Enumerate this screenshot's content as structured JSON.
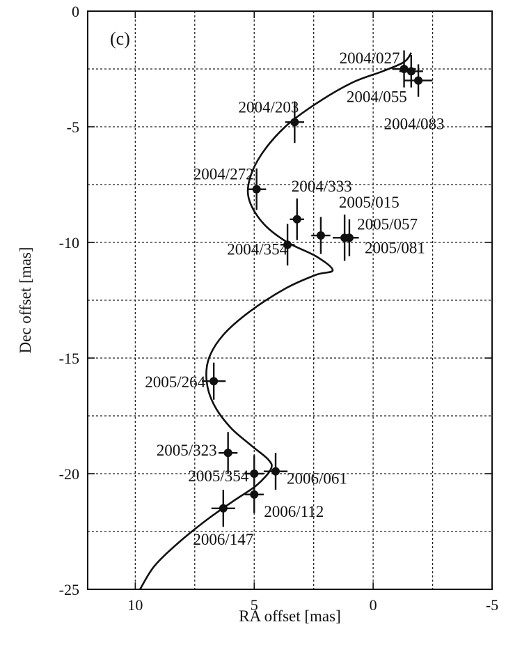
{
  "chart_data": {
    "type": "scatter",
    "panel_label": "(c)",
    "xlabel": "RA offset [mas]",
    "ylabel": "Dec offset [mas]",
    "xlim": [
      12,
      -5
    ],
    "ylim": [
      -25,
      0
    ],
    "x_major_ticks": [
      10,
      5,
      0,
      -5
    ],
    "y_major_ticks": [
      0,
      -5,
      -10,
      -15,
      -20,
      -25
    ],
    "x_grid": [
      10,
      7.5,
      5,
      2.5,
      0,
      -2.5
    ],
    "y_grid": [
      -2.5,
      -5,
      -7.5,
      -10,
      -12.5,
      -15,
      -17.5,
      -20,
      -22.5
    ],
    "grid": true,
    "points": [
      {
        "label": "2004/027",
        "x": -1.3,
        "y": -2.5,
        "xerr": 0.5,
        "yerr": 0.8
      },
      {
        "label": "2004/055",
        "x": -1.6,
        "y": -2.6,
        "xerr": 0.5,
        "yerr": 0.7
      },
      {
        "label": "2004/083",
        "x": -1.9,
        "y": -3.0,
        "xerr": 0.6,
        "yerr": 0.7
      },
      {
        "label": "2004/203",
        "x": 3.3,
        "y": -4.8,
        "xerr": 0.4,
        "yerr": 0.9
      },
      {
        "label": "2004/272",
        "x": 4.9,
        "y": -7.7,
        "xerr": 0.4,
        "yerr": 0.9
      },
      {
        "label": "2004/333",
        "x": 3.2,
        "y": -9.0,
        "xerr": 0.3,
        "yerr": 0.9
      },
      {
        "label": "2004/354",
        "x": 3.6,
        "y": -10.1,
        "xerr": 0.3,
        "yerr": 0.9
      },
      {
        "label": "2005/015",
        "x": 2.2,
        "y": -9.7,
        "xerr": 0.4,
        "yerr": 0.8
      },
      {
        "label": "2005/057",
        "x": 1.2,
        "y": -9.8,
        "xerr": 0.5,
        "yerr": 1.0
      },
      {
        "label": "2005/081",
        "x": 1.0,
        "y": -9.8,
        "xerr": 0.4,
        "yerr": 0.8
      },
      {
        "label": "2005/264",
        "x": 6.7,
        "y": -16.0,
        "xerr": 0.5,
        "yerr": 0.8
      },
      {
        "label": "2005/323",
        "x": 6.1,
        "y": -19.1,
        "xerr": 0.4,
        "yerr": 0.9
      },
      {
        "label": "2005/354",
        "x": 5.0,
        "y": -20.0,
        "xerr": 0.4,
        "yerr": 0.8
      },
      {
        "label": "2006/061",
        "x": 4.1,
        "y": -19.9,
        "xerr": 0.5,
        "yerr": 0.8
      },
      {
        "label": "2006/112",
        "x": 5.0,
        "y": -20.9,
        "xerr": 0.4,
        "yerr": 0.8
      },
      {
        "label": "2006/147",
        "x": 6.3,
        "y": -21.5,
        "xerr": 0.5,
        "yerr": 0.8
      }
    ],
    "model_curve": {
      "x": [
        9.8,
        9.2,
        8.2,
        7.0,
        5.9,
        4.9,
        4.3,
        4.4,
        5.1,
        6.0,
        6.7,
        7.0,
        6.9,
        6.3,
        5.2,
        3.7,
        2.4,
        1.7,
        2.4,
        3.6,
        4.6,
        5.2,
        5.2,
        4.7,
        3.7,
        2.4,
        0.9,
        -0.4,
        -1.3,
        -1.6
      ],
      "y": [
        -25.0,
        -24.0,
        -23.0,
        -22.0,
        -21.2,
        -20.5,
        -19.8,
        -19.4,
        -18.8,
        -18.0,
        -17.0,
        -16.0,
        -15.0,
        -14.0,
        -13.0,
        -12.0,
        -11.4,
        -11.2,
        -10.6,
        -10.0,
        -9.2,
        -8.2,
        -7.3,
        -6.2,
        -5.0,
        -4.0,
        -3.1,
        -2.6,
        -2.2,
        -1.8
      ]
    }
  }
}
